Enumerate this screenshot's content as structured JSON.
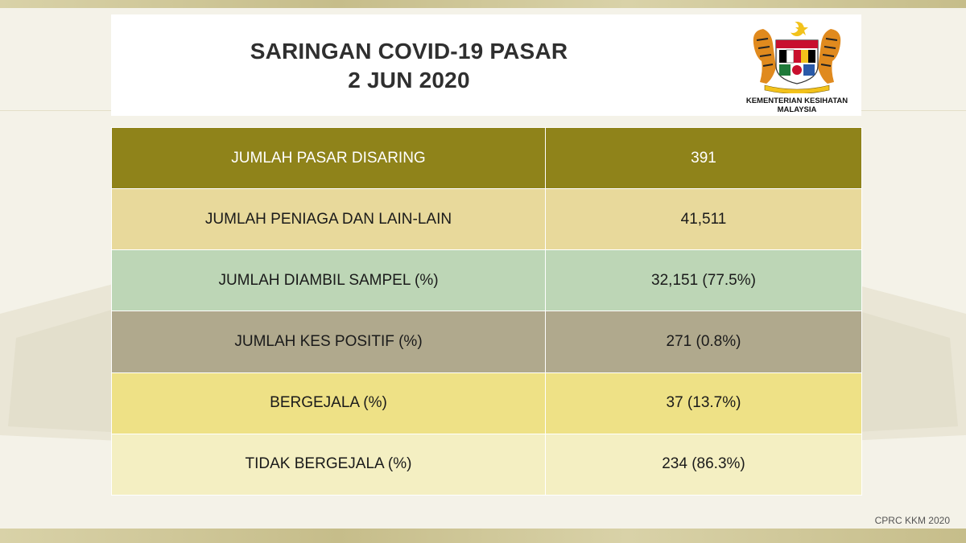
{
  "header": {
    "title_line1": "SARINGAN COVID-19 PASAR",
    "title_line2": "2 JUN 2020"
  },
  "logo": {
    "icon": "malaysia-coat-of-arms-icon",
    "line1": "KEMENTERIAN KESIHATAN",
    "line2": "MALAYSIA"
  },
  "table": {
    "rows": [
      {
        "label": "JUMLAH PASAR DISARING",
        "value": "391"
      },
      {
        "label": "JUMLAH PENIAGA DAN LAIN-LAIN",
        "value": "41,511"
      },
      {
        "label": "JUMLAH DIAMBIL SAMPEL (%)",
        "value": "32,151 (77.5%)"
      },
      {
        "label": "JUMLAH KES POSITIF (%)",
        "value": "271 (0.8%)"
      },
      {
        "label": "BERGEJALA (%)",
        "value": "37 (13.7%)"
      },
      {
        "label": "TIDAK BERGEJALA (%)",
        "value": "234 (86.3%)"
      }
    ]
  },
  "footer": {
    "credit": "CPRC KKM 2020"
  },
  "colors": {
    "header_row": "#8f831a",
    "row_peniaga": "#e8d99b",
    "row_sampel": "#bdd6b6",
    "row_positif": "#b0a98d",
    "row_bergejala": "#eee186",
    "row_tidak_bergejala": "#f4efc2"
  }
}
